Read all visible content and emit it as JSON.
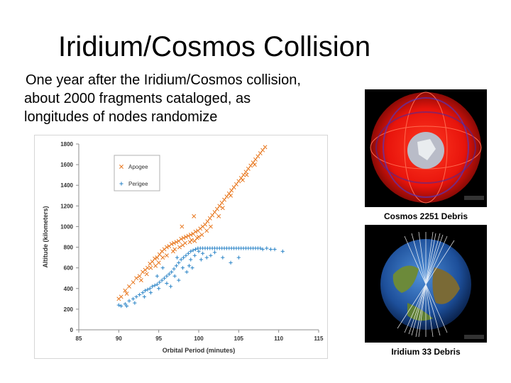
{
  "slide": {
    "title": "Iridium/Cosmos Collision",
    "body_lines": [
      "One year after the Iridium/Cosmos collision,",
      "about 2000 fragments cataloged, as",
      "longitudes of nodes randomize"
    ]
  },
  "images": [
    {
      "caption": "Cosmos 2251 Debris",
      "subject": "Earth globe with red debris orbit traces",
      "accent": "#e8140c"
    },
    {
      "caption": "Iridium 33 Debris",
      "subject": "Earth globe with white debris orbit traces",
      "accent": "#ffffff"
    }
  ],
  "chart_data": {
    "type": "scatter",
    "xlabel": "Orbital Period (minutes)",
    "ylabel": "Altitude  (kilometers)",
    "xlim": [
      85,
      115
    ],
    "ylim": [
      0,
      1800
    ],
    "x_ticks": [
      "85",
      "90",
      "95",
      "100",
      "105",
      "110",
      "115"
    ],
    "y_ticks": [
      "0",
      "200",
      "400",
      "600",
      "800",
      "1000",
      "1200",
      "1400",
      "1600",
      "1800"
    ],
    "grid": false,
    "legend_placement": "top-left",
    "series": [
      {
        "name": "Apogee",
        "color": "#e8771e",
        "marker": "x",
        "points": [
          [
            90,
            300
          ],
          [
            90.3,
            320
          ],
          [
            90.8,
            380
          ],
          [
            91.3,
            420
          ],
          [
            91.8,
            460
          ],
          [
            92.2,
            500
          ],
          [
            92.6,
            520
          ],
          [
            93,
            560
          ],
          [
            93.3,
            580
          ],
          [
            93.6,
            600
          ],
          [
            93.9,
            640
          ],
          [
            94.2,
            660
          ],
          [
            94.5,
            690
          ],
          [
            94.8,
            700
          ],
          [
            95.1,
            730
          ],
          [
            95.4,
            760
          ],
          [
            95.7,
            780
          ],
          [
            96,
            800
          ],
          [
            96.3,
            810
          ],
          [
            96.6,
            830
          ],
          [
            96.9,
            840
          ],
          [
            97.2,
            850
          ],
          [
            97.5,
            860
          ],
          [
            97.8,
            880
          ],
          [
            98.1,
            890
          ],
          [
            98.4,
            900
          ],
          [
            98.7,
            910
          ],
          [
            99,
            920
          ],
          [
            99.3,
            930
          ],
          [
            99.6,
            950
          ],
          [
            99.9,
            960
          ],
          [
            100.2,
            980
          ],
          [
            100.5,
            1000
          ],
          [
            100.8,
            1020
          ],
          [
            101.1,
            1050
          ],
          [
            101.4,
            1080
          ],
          [
            101.7,
            1110
          ],
          [
            102,
            1140
          ],
          [
            102.3,
            1170
          ],
          [
            102.6,
            1200
          ],
          [
            102.9,
            1230
          ],
          [
            103.2,
            1260
          ],
          [
            103.5,
            1290
          ],
          [
            103.8,
            1320
          ],
          [
            104.1,
            1350
          ],
          [
            104.4,
            1380
          ],
          [
            104.7,
            1410
          ],
          [
            105,
            1440
          ],
          [
            105.3,
            1470
          ],
          [
            105.6,
            1500
          ],
          [
            105.9,
            1530
          ],
          [
            106.2,
            1560
          ],
          [
            106.5,
            1590
          ],
          [
            106.8,
            1620
          ],
          [
            107.1,
            1650
          ],
          [
            107.4,
            1680
          ],
          [
            107.7,
            1710
          ],
          [
            108,
            1740
          ],
          [
            108.3,
            1770
          ],
          [
            95.5,
            700
          ],
          [
            96.8,
            760
          ],
          [
            97.6,
            800
          ],
          [
            98.3,
            840
          ],
          [
            99.1,
            870
          ],
          [
            99.8,
            890
          ],
          [
            100.4,
            920
          ],
          [
            101,
            960
          ],
          [
            94,
            600
          ],
          [
            95,
            650
          ],
          [
            96,
            720
          ],
          [
            97,
            780
          ],
          [
            98,
            820
          ],
          [
            99.5,
            860
          ],
          [
            100,
            900
          ],
          [
            101.5,
            1000
          ],
          [
            102.5,
            1100
          ],
          [
            103,
            1180
          ],
          [
            104,
            1300
          ],
          [
            105.5,
            1450
          ],
          [
            106,
            1500
          ],
          [
            107,
            1600
          ],
          [
            92.8,
            480
          ],
          [
            93.5,
            540
          ],
          [
            91,
            350
          ],
          [
            94.6,
            620
          ],
          [
            97.9,
            1000
          ],
          [
            99.4,
            1100
          ],
          [
            98.9,
            850
          ]
        ]
      },
      {
        "name": "Perigee",
        "color": "#2e86c8",
        "marker": "+",
        "points": [
          [
            90,
            240
          ],
          [
            90.3,
            230
          ],
          [
            90.8,
            250
          ],
          [
            91.3,
            280
          ],
          [
            91.8,
            300
          ],
          [
            92.2,
            320
          ],
          [
            92.6,
            340
          ],
          [
            93,
            360
          ],
          [
            93.3,
            380
          ],
          [
            93.6,
            390
          ],
          [
            93.9,
            400
          ],
          [
            94.2,
            420
          ],
          [
            94.5,
            430
          ],
          [
            94.8,
            440
          ],
          [
            95.1,
            460
          ],
          [
            95.4,
            480
          ],
          [
            95.7,
            500
          ],
          [
            96,
            520
          ],
          [
            96.3,
            540
          ],
          [
            96.6,
            560
          ],
          [
            96.9,
            590
          ],
          [
            97.2,
            620
          ],
          [
            97.5,
            650
          ],
          [
            97.8,
            680
          ],
          [
            98.1,
            700
          ],
          [
            98.4,
            720
          ],
          [
            98.7,
            740
          ],
          [
            99,
            760
          ],
          [
            99.3,
            770
          ],
          [
            99.6,
            780
          ],
          [
            99.9,
            790
          ],
          [
            100.2,
            790
          ],
          [
            100.5,
            790
          ],
          [
            100.8,
            790
          ],
          [
            101.1,
            790
          ],
          [
            101.4,
            790
          ],
          [
            101.7,
            790
          ],
          [
            102,
            790
          ],
          [
            102.3,
            790
          ],
          [
            102.6,
            790
          ],
          [
            102.9,
            790
          ],
          [
            103.2,
            790
          ],
          [
            103.5,
            790
          ],
          [
            103.8,
            790
          ],
          [
            104.1,
            790
          ],
          [
            104.4,
            790
          ],
          [
            104.7,
            790
          ],
          [
            105,
            790
          ],
          [
            105.3,
            790
          ],
          [
            105.6,
            790
          ],
          [
            105.9,
            790
          ],
          [
            106.2,
            790
          ],
          [
            106.5,
            790
          ],
          [
            106.8,
            790
          ],
          [
            107.1,
            790
          ],
          [
            107.4,
            790
          ],
          [
            107.7,
            790
          ],
          [
            108,
            780
          ],
          [
            108.5,
            790
          ],
          [
            109,
            780
          ],
          [
            109.5,
            780
          ],
          [
            110.5,
            760
          ],
          [
            93.2,
            320
          ],
          [
            94,
            360
          ],
          [
            95,
            400
          ],
          [
            96,
            450
          ],
          [
            97,
            520
          ],
          [
            98,
            600
          ],
          [
            99,
            680
          ],
          [
            99.5,
            720
          ],
          [
            100,
            760
          ],
          [
            100.5,
            740
          ],
          [
            101,
            700
          ],
          [
            101.5,
            720
          ],
          [
            102,
            750
          ],
          [
            103,
            700
          ],
          [
            104,
            650
          ],
          [
            105,
            700
          ],
          [
            96.5,
            420
          ],
          [
            97.5,
            480
          ],
          [
            98.5,
            560
          ],
          [
            95.5,
            600
          ],
          [
            97.3,
            700
          ],
          [
            98.8,
            620
          ],
          [
            92,
            260
          ],
          [
            91,
            230
          ],
          [
            99.2,
            600
          ],
          [
            100.3,
            680
          ],
          [
            94.8,
            520
          ]
        ]
      }
    ]
  }
}
